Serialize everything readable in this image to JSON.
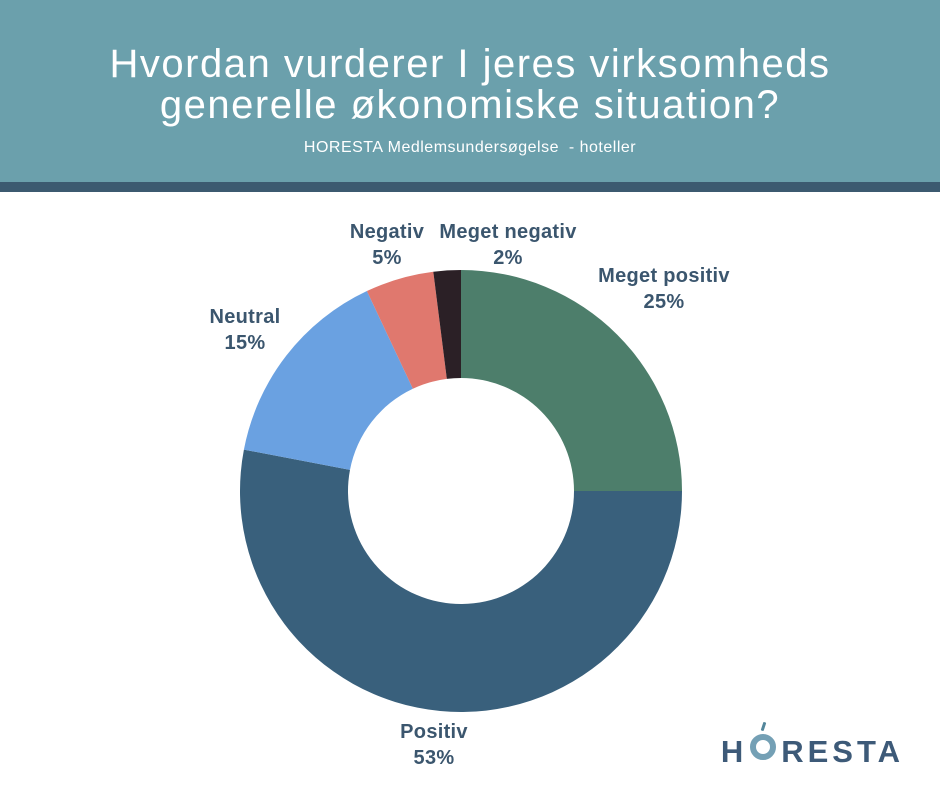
{
  "header": {
    "title_lines": [
      "Hvordan vurderer I jeres virksomheds",
      "generelle økonomiske situation?"
    ],
    "subtitle": "HORESTA Medlemsundersøgelse  - hoteller",
    "background_color": "#6BA0AC",
    "divider_color": "#3C5A70",
    "text_color": "#FFFFFF"
  },
  "chart_data": {
    "type": "pie",
    "variant": "donut",
    "title": "Hvordan vurderer I jeres virksomheds generelle økonomiske situation?",
    "subtitle": "HORESTA Medlemsundersøgelse  - hoteller",
    "start_angle_deg": 0,
    "direction": "clockwise",
    "inner_radius_ratio": 0.51,
    "label_color": "#3B566E",
    "legend_position": "labels-around-chart",
    "slices": [
      {
        "label": "Meget positiv",
        "value": 25,
        "pct_label": "25%",
        "color": "#4D7E6B"
      },
      {
        "label": "Positiv",
        "value": 53,
        "pct_label": "53%",
        "color": "#39607C"
      },
      {
        "label": "Neutral",
        "value": 15,
        "pct_label": "15%",
        "color": "#6AA1E1"
      },
      {
        "label": "Negativ",
        "value": 5,
        "pct_label": "5%",
        "color": "#E0786E"
      },
      {
        "label": "Meget negativ",
        "value": 2,
        "pct_label": "2%",
        "color": "#2B2026"
      }
    ]
  },
  "footer": {
    "logo": {
      "prefix": "H",
      "suffix": "RESTA",
      "text_color": "#3D5A78",
      "ring_color": "#74A0B5"
    }
  }
}
